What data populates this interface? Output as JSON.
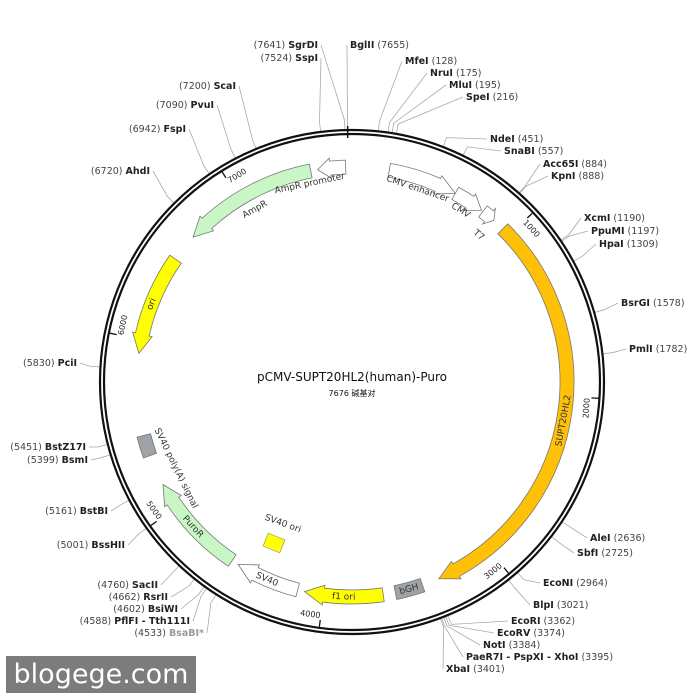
{
  "plasmid": {
    "name": "pCMV-SUPT20HL2(human)-Puro",
    "length_label": "7676 碱基对",
    "length_bp": 7676
  },
  "colors": {
    "orange": "#ffc107",
    "yellow": "#ffff00",
    "green": "#c8f7c5",
    "grey": "#9ea3a8",
    "white": "#ffffff",
    "faded_text": "#999999"
  },
  "ticks": [
    "1000",
    "2000",
    "3000",
    "4000",
    "5000",
    "6000",
    "7000"
  ],
  "features": [
    {
      "name": "CMV enhancer",
      "start": 213,
      "end": 612,
      "dir": 1,
      "color": "#ffffff"
    },
    {
      "name": "CMV",
      "start": 612,
      "end": 790,
      "dir": 1,
      "color": "#ffffff"
    },
    {
      "name": "T7",
      "start": 800,
      "end": 880,
      "dir": 1,
      "color": "#ffffff"
    },
    {
      "name": "SUPT20HL2",
      "start": 950,
      "end": 3330,
      "dir": 1,
      "color": "#ffc107"
    },
    {
      "name": "bGH",
      "start": 3430,
      "end": 3590,
      "dir": 0,
      "color": "#9ea3a8"
    },
    {
      "name": "f1 ori",
      "start": 3660,
      "end": 4110,
      "dir": 1,
      "color": "#ffff00"
    },
    {
      "name": "SV40",
      "start": 4150,
      "end": 4520,
      "dir": 1,
      "color": "#ffffff"
    },
    {
      "name": "PuroR",
      "start": 4560,
      "end": 5150,
      "dir": 1,
      "color": "#c8f7c5"
    },
    {
      "name": "SV40 poly(A) signal",
      "start": 5330,
      "end": 5450,
      "dir": 0,
      "color": "#9ea3a8"
    },
    {
      "name": "ori",
      "start": 5920,
      "end": 6500,
      "dir": -1,
      "color": "#ffff00"
    },
    {
      "name": "AmpR",
      "start": 6660,
      "end": 7440,
      "dir": -1,
      "color": "#c8f7c5"
    },
    {
      "name": "AmpR promoter",
      "start": 7480,
      "end": 7640,
      "dir": -1,
      "color": "#ffffff"
    }
  ],
  "sv40_ori": {
    "name": "SV40 ori",
    "color": "#ffff00"
  },
  "enzymes": [
    {
      "name": "SgrDI",
      "pos": "7641",
      "bp": 7641
    },
    {
      "name": "SspI",
      "pos": "7524",
      "bp": 7524
    },
    {
      "name": "ScaI",
      "pos": "7200",
      "bp": 7200
    },
    {
      "name": "PvuI",
      "pos": "7090",
      "bp": 7090
    },
    {
      "name": "FspI",
      "pos": "6942",
      "bp": 6942
    },
    {
      "name": "AhdI",
      "pos": "6720",
      "bp": 6720
    },
    {
      "name": "PciI",
      "pos": "5830",
      "bp": 5830
    },
    {
      "name": "BstZ17I",
      "pos": "5451",
      "bp": 5451
    },
    {
      "name": "BsmI",
      "pos": "5399",
      "bp": 5399
    },
    {
      "name": "BstBI",
      "pos": "5161",
      "bp": 5161
    },
    {
      "name": "BssHII",
      "pos": "5001",
      "bp": 5001
    },
    {
      "name": "SacII",
      "pos": "4760",
      "bp": 4760
    },
    {
      "name": "RsrII",
      "pos": "4662",
      "bp": 4662
    },
    {
      "name": "BsiWI",
      "pos": "4602",
      "bp": 4602
    },
    {
      "name": "PflFI - Tth111I",
      "pos": "4588",
      "bp": 4588
    },
    {
      "name": "BsaBI*",
      "pos": "4533",
      "bp": 4533,
      "faded": true
    },
    {
      "name": "BglII",
      "pos": "7655",
      "bp": 7655
    },
    {
      "name": "MfeI",
      "pos": "128",
      "bp": 128
    },
    {
      "name": "NruI",
      "pos": "175",
      "bp": 175
    },
    {
      "name": "MluI",
      "pos": "195",
      "bp": 195
    },
    {
      "name": "SpeI",
      "pos": "216",
      "bp": 216
    },
    {
      "name": "NdeI",
      "pos": "451",
      "bp": 451
    },
    {
      "name": "SnaBI",
      "pos": "557",
      "bp": 557
    },
    {
      "name": "Acc65I",
      "pos": "884",
      "bp": 884
    },
    {
      "name": "KpnI",
      "pos": "888",
      "bp": 888
    },
    {
      "name": "XcmI",
      "pos": "1190",
      "bp": 1190
    },
    {
      "name": "PpuMI",
      "pos": "1197",
      "bp": 1197
    },
    {
      "name": "HpaI",
      "pos": "1309",
      "bp": 1309
    },
    {
      "name": "BsrGI",
      "pos": "1578",
      "bp": 1578
    },
    {
      "name": "PmlI",
      "pos": "1782",
      "bp": 1782
    },
    {
      "name": "AleI",
      "pos": "2636",
      "bp": 2636
    },
    {
      "name": "SbfI",
      "pos": "2725",
      "bp": 2725
    },
    {
      "name": "EcoNI",
      "pos": "2964",
      "bp": 2964
    },
    {
      "name": "BlpI",
      "pos": "3021",
      "bp": 3021
    },
    {
      "name": "EcoRI",
      "pos": "3362",
      "bp": 3362
    },
    {
      "name": "EcoRV",
      "pos": "3374",
      "bp": 3374
    },
    {
      "name": "NotI",
      "pos": "3384",
      "bp": 3384
    },
    {
      "name": "PaeR7I - PspXI - XhoI",
      "pos": "3395",
      "bp": 3395
    },
    {
      "name": "XbaI",
      "pos": "3401",
      "bp": 3401
    }
  ],
  "watermark": "blogege.com"
}
